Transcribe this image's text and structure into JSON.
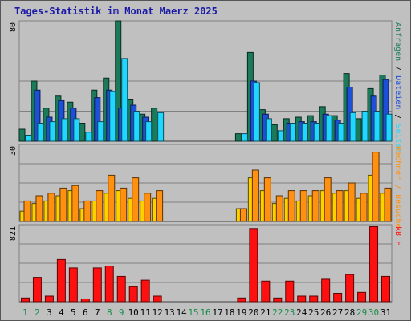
{
  "title": "Tages-Statistik im Monat Maerz 2025",
  "colors": {
    "anfragen": "#1a7a5a",
    "dateien": "#1e4fd8",
    "seiten": "#20d8ff",
    "rechner": "#ffd000",
    "besuche": "#ff9010",
    "kb": "#ff1010",
    "title": "#1a1aa6",
    "weekend_day": "#1a8a4a",
    "weekday": "#000000",
    "grid": "#808080"
  },
  "chart_data": [
    {
      "type": "bar",
      "panel": "top",
      "ylim": [
        0,
        80
      ],
      "y_tick_label": "80",
      "right_labels": [
        {
          "text": "Anfragen",
          "color": "#1a7a5a"
        },
        {
          "text": " / ",
          "color": "#000000"
        },
        {
          "text": "Dateien",
          "color": "#1e4fd8"
        },
        {
          "text": " / ",
          "color": "#000000"
        },
        {
          "text": "Seiten",
          "color": "#20d8ff"
        }
      ],
      "categories": [
        "1",
        "2",
        "3",
        "4",
        "5",
        "6",
        "7",
        "8",
        "9",
        "10",
        "11",
        "12",
        "13",
        "14",
        "15",
        "16",
        "17",
        "18",
        "19",
        "20",
        "21",
        "22",
        "23",
        "24",
        "25",
        "26",
        "27",
        "28",
        "29",
        "30",
        "31"
      ],
      "series": [
        {
          "name": "Anfragen",
          "values": [
            8,
            40,
            22,
            30,
            26,
            12,
            34,
            42,
            80,
            28,
            18,
            22,
            0,
            0,
            0,
            0,
            0,
            0,
            5,
            59,
            21,
            11,
            15,
            16,
            17,
            23,
            17,
            45,
            15,
            35,
            44
          ]
        },
        {
          "name": "Dateien",
          "values": [
            0,
            34,
            16,
            27,
            22,
            0,
            29,
            34,
            22,
            24,
            16,
            0,
            0,
            0,
            0,
            0,
            0,
            0,
            0,
            40,
            18,
            0,
            12,
            13,
            13,
            18,
            14,
            36,
            0,
            30,
            41
          ]
        },
        {
          "name": "Seiten",
          "values": [
            4,
            12,
            13,
            15,
            15,
            6,
            13,
            33,
            55,
            20,
            13,
            19,
            0,
            0,
            0,
            0,
            0,
            0,
            5,
            39,
            15,
            7,
            12,
            12,
            12,
            17,
            12,
            19,
            20,
            20,
            18
          ]
        }
      ]
    },
    {
      "type": "bar",
      "panel": "middle",
      "ylim": [
        0,
        30
      ],
      "y_tick_label": "30",
      "right_labels": [
        {
          "text": "Rechner",
          "color": "#ff9010"
        },
        {
          "text": " / ",
          "color": "#ff9010"
        },
        {
          "text": "Besuche",
          "color": "#ff9010"
        }
      ],
      "categories": [
        "1",
        "2",
        "3",
        "4",
        "5",
        "6",
        "7",
        "8",
        "9",
        "10",
        "11",
        "12",
        "13",
        "14",
        "15",
        "16",
        "17",
        "18",
        "19",
        "20",
        "21",
        "22",
        "23",
        "24",
        "25",
        "26",
        "27",
        "28",
        "29",
        "30",
        "31"
      ],
      "series": [
        {
          "name": "Rechner",
          "values": [
            4,
            7,
            8,
            10,
            12,
            5,
            8,
            11,
            12,
            9,
            8,
            9,
            0,
            0,
            0,
            0,
            0,
            0,
            5,
            17,
            12,
            7,
            9,
            8,
            10,
            12,
            11,
            12,
            9,
            18,
            11
          ]
        },
        {
          "name": "Besuche",
          "values": [
            8,
            10,
            11,
            13,
            14,
            8,
            12,
            18,
            13,
            17,
            11,
            12,
            0,
            0,
            0,
            0,
            0,
            0,
            5,
            20,
            17,
            10,
            12,
            12,
            12,
            17,
            12,
            15,
            11,
            27,
            13
          ]
        }
      ]
    },
    {
      "type": "bar",
      "panel": "bottom",
      "ylim": [
        0,
        821
      ],
      "y_tick_label": "821",
      "right_labels": [
        {
          "text": "kB F",
          "color": "#ff1010"
        }
      ],
      "categories": [
        "1",
        "2",
        "3",
        "4",
        "5",
        "6",
        "7",
        "8",
        "9",
        "10",
        "11",
        "12",
        "13",
        "14",
        "15",
        "16",
        "17",
        "18",
        "19",
        "20",
        "21",
        "22",
        "23",
        "24",
        "25",
        "26",
        "27",
        "28",
        "29",
        "30",
        "31"
      ],
      "series": [
        {
          "name": "kB F",
          "values": [
            40,
            260,
            60,
            450,
            360,
            30,
            360,
            380,
            270,
            160,
            230,
            60,
            0,
            0,
            0,
            0,
            0,
            0,
            40,
            780,
            220,
            40,
            220,
            60,
            60,
            240,
            90,
            290,
            100,
            800,
            270
          ]
        }
      ]
    }
  ],
  "x_labels": [
    {
      "text": "1",
      "weekend": true
    },
    {
      "text": "2",
      "weekend": true
    },
    {
      "text": "3",
      "weekend": false
    },
    {
      "text": "4",
      "weekend": false
    },
    {
      "text": "5",
      "weekend": false
    },
    {
      "text": "6",
      "weekend": false
    },
    {
      "text": "7",
      "weekend": false
    },
    {
      "text": "8",
      "weekend": true
    },
    {
      "text": "9",
      "weekend": true
    },
    {
      "text": "10",
      "weekend": false
    },
    {
      "text": "11",
      "weekend": false
    },
    {
      "text": "12",
      "weekend": false
    },
    {
      "text": "13",
      "weekend": false
    },
    {
      "text": "14",
      "weekend": false
    },
    {
      "text": "15",
      "weekend": true
    },
    {
      "text": "16",
      "weekend": true
    },
    {
      "text": "17",
      "weekend": false
    },
    {
      "text": "18",
      "weekend": false
    },
    {
      "text": "19",
      "weekend": false
    },
    {
      "text": "20",
      "weekend": false
    },
    {
      "text": "21",
      "weekend": false
    },
    {
      "text": "22",
      "weekend": true
    },
    {
      "text": "23",
      "weekend": true
    },
    {
      "text": "24",
      "weekend": false
    },
    {
      "text": "25",
      "weekend": false
    },
    {
      "text": "26",
      "weekend": false
    },
    {
      "text": "27",
      "weekend": false
    },
    {
      "text": "28",
      "weekend": false
    },
    {
      "text": "29",
      "weekend": true
    },
    {
      "text": "30",
      "weekend": true
    },
    {
      "text": "31",
      "weekend": false
    }
  ]
}
